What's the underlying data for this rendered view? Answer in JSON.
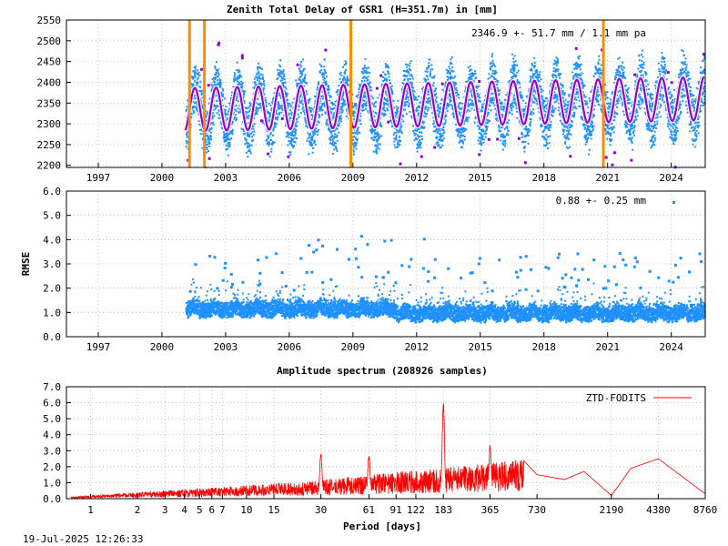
{
  "footer": {
    "timestamp": "19-Jul-2025 12:26:33"
  },
  "colors": {
    "data": "#1e90ff",
    "fit": "#9400d3",
    "outlier": "#9400d3",
    "marker": "#ff8c00",
    "spectrum": "#ff0000",
    "grid": "#a0a0a0"
  },
  "chart_data": [
    {
      "type": "scatter",
      "title": "Zenith Total Delay of GSR1 (H=351.7m) in [mm]",
      "annotation": "2346.9 +-  51.7 mm /  1.1 mm pa",
      "xlim": [
        1995.5,
        2025.6
      ],
      "ylim": [
        2195,
        2550
      ],
      "yticks": [
        2200,
        2250,
        2300,
        2350,
        2400,
        2450,
        2500,
        2550
      ],
      "xticks": [
        1997,
        2000,
        2003,
        2006,
        2009,
        2012,
        2015,
        2018,
        2021,
        2024
      ],
      "data_start": 2001.1,
      "data_end": 2025.55,
      "mean": 2346.9,
      "amplitude": 52,
      "spread": 55,
      "trend_mm_per_year": 1.1,
      "markers": [
        2001.3,
        2002.0,
        2008.9,
        2020.8
      ]
    },
    {
      "type": "scatter",
      "ylabel": "RMSE",
      "annotation": "0.88 +-  0.25 mm",
      "xlim": [
        1995.5,
        2025.6
      ],
      "ylim": [
        0,
        6
      ],
      "yticks": [
        0.0,
        1.0,
        2.0,
        3.0,
        4.0,
        5.0,
        6.0
      ],
      "xticks": [
        1997,
        2000,
        2003,
        2006,
        2009,
        2012,
        2015,
        2018,
        2021,
        2024
      ],
      "mean": 0.88,
      "std": 0.25,
      "data_start": 2001.1,
      "data_end": 2025.55
    },
    {
      "type": "line",
      "title": "Amplitude spectrum (208926 samples)",
      "xlabel": "Period [days]",
      "legend": "ZTD-FODITS",
      "legend_position": "top-right",
      "xscale": "log",
      "xlim": [
        0.7,
        8760
      ],
      "ylim": [
        0,
        7
      ],
      "yticks": [
        0.0,
        1.0,
        2.0,
        3.0,
        4.0,
        5.0,
        6.0,
        7.0
      ],
      "xticks": [
        1,
        2,
        3,
        4,
        5,
        6,
        7,
        10,
        15,
        30,
        61,
        91,
        122,
        183,
        365,
        730,
        2190,
        4380,
        8760
      ],
      "peaks": [
        {
          "period": 183,
          "amplitude": 6.3
        },
        {
          "period": 365,
          "amplitude": 3.6
        },
        {
          "period": 30,
          "amplitude": 3.0
        },
        {
          "period": 61,
          "amplitude": 2.9
        }
      ],
      "low_freq": [
        {
          "period": 730,
          "amplitude": 1.5
        },
        {
          "period": 1095,
          "amplitude": 1.2
        },
        {
          "period": 1460,
          "amplitude": 1.7
        },
        {
          "period": 2190,
          "amplitude": 0.2
        },
        {
          "period": 2920,
          "amplitude": 1.9
        },
        {
          "period": 4380,
          "amplitude": 2.5
        },
        {
          "period": 8760,
          "amplitude": 0.3
        }
      ]
    }
  ]
}
